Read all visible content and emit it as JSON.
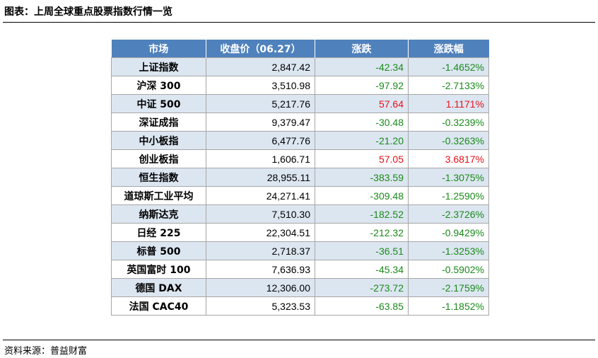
{
  "title": "图表：上周全球重点股票指数行情一览",
  "source": "资料来源：普益财富",
  "table": {
    "headers": [
      "市场",
      "收盘价（06.27）",
      "涨跌",
      "涨跌幅"
    ],
    "rows": [
      {
        "market": "上证指数",
        "close": "2,847.42",
        "change": "-42.34",
        "pct": "-1.4652%",
        "dir": "down"
      },
      {
        "market": "沪深 300",
        "close": "3,510.98",
        "change": "-97.92",
        "pct": "-2.7133%",
        "dir": "down"
      },
      {
        "market": "中证 500",
        "close": "5,217.76",
        "change": "57.64",
        "pct": "1.1171%",
        "dir": "up"
      },
      {
        "market": "深证成指",
        "close": "9,379.47",
        "change": "-30.48",
        "pct": "-0.3239%",
        "dir": "down"
      },
      {
        "market": "中小板指",
        "close": "6,477.76",
        "change": "-21.20",
        "pct": "-0.3263%",
        "dir": "down"
      },
      {
        "market": "创业板指",
        "close": "1,606.71",
        "change": "57.05",
        "pct": "3.6817%",
        "dir": "up"
      },
      {
        "market": "恒生指数",
        "close": "28,955.11",
        "change": "-383.59",
        "pct": "-1.3075%",
        "dir": "down"
      },
      {
        "market": "道琼斯工业平均",
        "close": "24,271.41",
        "change": "-309.48",
        "pct": "-1.2590%",
        "dir": "down"
      },
      {
        "market": "纳斯达克",
        "close": "7,510.30",
        "change": "-182.52",
        "pct": "-2.3726%",
        "dir": "down"
      },
      {
        "market": "日经 225",
        "close": "22,304.51",
        "change": "-212.32",
        "pct": "-0.9429%",
        "dir": "down"
      },
      {
        "market": "标普 500",
        "close": "2,718.37",
        "change": "-36.51",
        "pct": "-1.3253%",
        "dir": "down"
      },
      {
        "market": "英国富时 100",
        "close": "7,636.93",
        "change": "-45.34",
        "pct": "-0.5902%",
        "dir": "down"
      },
      {
        "market": "德国 DAX",
        "close": "12,306.00",
        "change": "-273.72",
        "pct": "-2.1759%",
        "dir": "down"
      },
      {
        "market": "法国 CAC40",
        "close": "5,323.53",
        "change": "-63.85",
        "pct": "-1.1852%",
        "dir": "down"
      }
    ]
  },
  "colors": {
    "header_bg": "#4f81bd",
    "shaded_row": "#dce6f1",
    "down": "#1a8a1a",
    "up": "#e8101a"
  }
}
